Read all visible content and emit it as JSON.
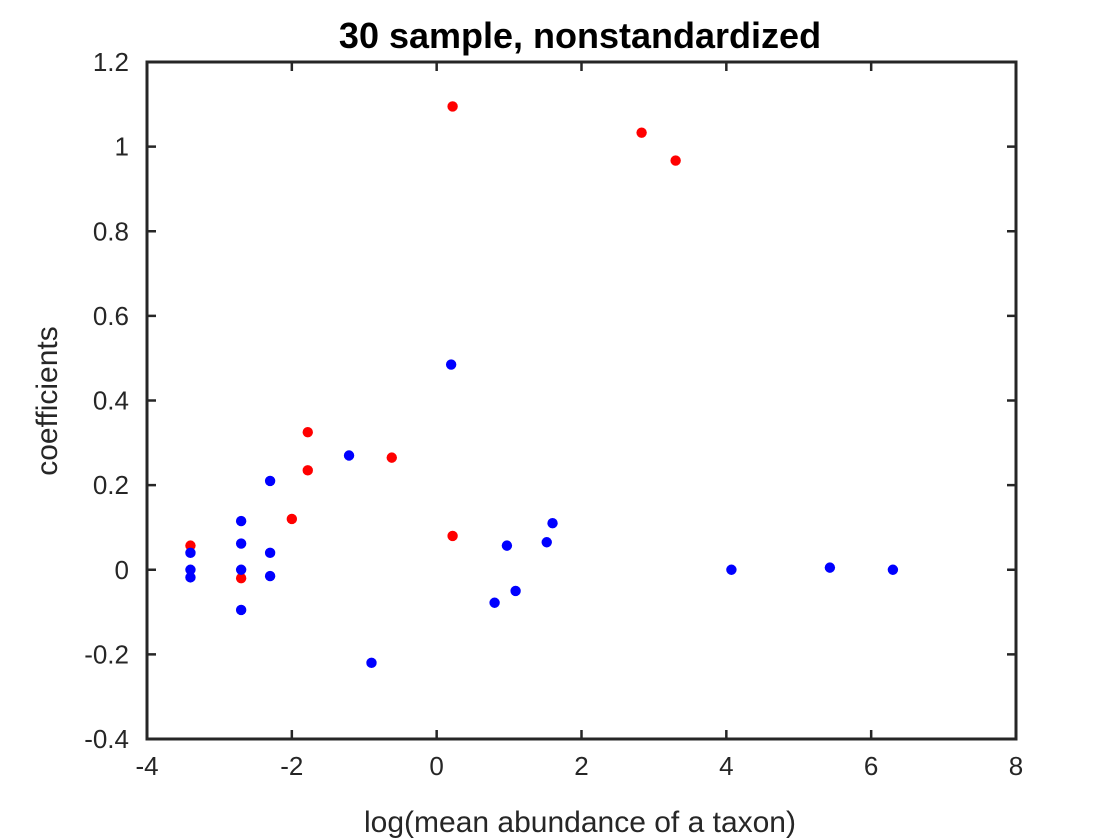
{
  "chart_data": {
    "type": "scatter",
    "title": "30 sample, nonstandardized",
    "xlabel": "log(mean abundance of a taxon)",
    "ylabel": "coefficients",
    "xlim": [
      -4,
      8
    ],
    "ylim": [
      -0.4,
      1.2
    ],
    "xticks": [
      -4,
      -2,
      0,
      2,
      4,
      6,
      8
    ],
    "xtick_labels": [
      "-4",
      "-2",
      "0",
      "2",
      "4",
      "6",
      "8"
    ],
    "yticks": [
      -0.4,
      -0.2,
      0,
      0.2,
      0.4,
      0.6,
      0.8,
      1.0,
      1.2
    ],
    "ytick_labels": [
      "-0.4",
      "-0.2",
      "0",
      "0.2",
      "0.4",
      "0.6",
      "0.8",
      "1",
      "1.2"
    ],
    "grid": false,
    "box": true,
    "series": [
      {
        "color": "#ff0000",
        "x": [
          0.22,
          2.83,
          3.3,
          -1.78,
          -1.78,
          -2.0,
          -0.62,
          0.22,
          -3.4,
          -2.7
        ],
        "y": [
          1.095,
          1.033,
          0.967,
          0.325,
          0.235,
          0.12,
          0.265,
          0.08,
          0.057,
          -0.02
        ]
      },
      {
        "color": "#0000ff",
        "x": [
          0.2,
          -1.21,
          -2.3,
          -2.7,
          -2.7,
          -2.3,
          -3.4,
          -3.4,
          -3.4,
          -2.7,
          -2.3,
          -2.7,
          -0.9,
          0.97,
          1.52,
          1.6,
          0.8,
          1.09,
          4.07,
          5.43,
          6.3
        ],
        "y": [
          0.485,
          0.27,
          0.21,
          0.115,
          0.062,
          0.04,
          0.04,
          0.0,
          -0.018,
          0.0,
          -0.015,
          -0.095,
          -0.22,
          0.057,
          0.065,
          0.11,
          -0.078,
          -0.05,
          0.0,
          0.005,
          0.0
        ]
      }
    ]
  }
}
